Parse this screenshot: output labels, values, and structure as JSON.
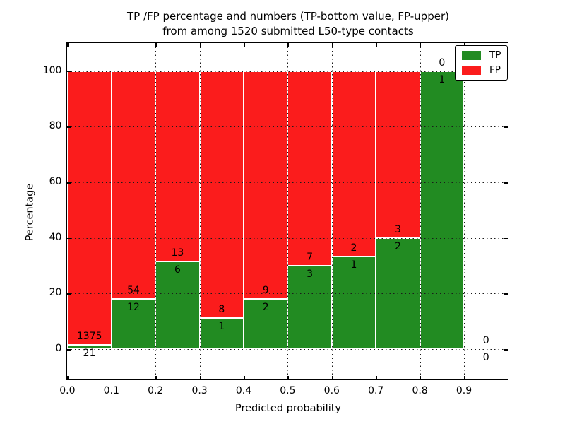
{
  "title": {
    "line1": "TP /FP percentage and numbers (TP-bottom value, FP-upper)",
    "line2": "from among 1520 submitted L50-type contacts"
  },
  "axes": {
    "xlabel": "Predicted probability",
    "ylabel": "Percentage",
    "xlim": [
      0,
      1.0
    ],
    "ylim": [
      -11,
      110
    ],
    "x_ticks": [
      "0.0",
      "0.1",
      "0.2",
      "0.3",
      "0.4",
      "0.5",
      "0.6",
      "0.7",
      "0.8",
      "0.9"
    ],
    "x_tick_values": [
      0,
      0.1,
      0.2,
      0.3,
      0.4,
      0.5,
      0.6,
      0.7,
      0.8,
      0.9
    ],
    "y_ticks": [
      "0",
      "20",
      "40",
      "60",
      "80",
      "100"
    ],
    "y_tick_values": [
      0,
      20,
      40,
      60,
      80,
      100
    ]
  },
  "legend": {
    "items": [
      {
        "label": "TP",
        "color": "#228b22"
      },
      {
        "label": "FP",
        "color": "#fb1c1c"
      }
    ]
  },
  "colors": {
    "tp": "#228b22",
    "fp": "#fb1c1c",
    "grid": "#1a1a1a",
    "text": "#000000",
    "background": "#ffffff"
  },
  "chart_data": {
    "type": "bar",
    "stacked": true,
    "normalized_to": 100,
    "title": "TP /FP percentage and numbers (TP-bottom value, FP-upper) from among 1520 submitted L50-type contacts",
    "xlabel": "Predicted probability",
    "ylabel": "Percentage",
    "xlim": [
      0,
      1.0
    ],
    "ylim": [
      -11,
      110
    ],
    "grid": true,
    "legend_position": "upper right",
    "total_contacts": 1520,
    "categories": [
      "0.0-0.1",
      "0.1-0.2",
      "0.2-0.3",
      "0.3-0.4",
      "0.4-0.5",
      "0.5-0.6",
      "0.6-0.7",
      "0.7-0.8",
      "0.8-0.9",
      "0.9-1.0"
    ],
    "series": [
      {
        "name": "TP",
        "values": [
          21,
          12,
          6,
          1,
          2,
          3,
          1,
          2,
          1,
          0
        ]
      },
      {
        "name": "FP",
        "values": [
          1375,
          54,
          13,
          8,
          9,
          7,
          2,
          3,
          0,
          0
        ]
      }
    ],
    "bins": [
      {
        "x0": 0.0,
        "x1": 0.1,
        "tp": 21,
        "fp": 1375,
        "tp_pct": 1.5
      },
      {
        "x0": 0.1,
        "x1": 0.2,
        "tp": 12,
        "fp": 54,
        "tp_pct": 18.18
      },
      {
        "x0": 0.2,
        "x1": 0.3,
        "tp": 6,
        "fp": 13,
        "tp_pct": 31.58
      },
      {
        "x0": 0.3,
        "x1": 0.4,
        "tp": 1,
        "fp": 8,
        "tp_pct": 11.11
      },
      {
        "x0": 0.4,
        "x1": 0.5,
        "tp": 2,
        "fp": 9,
        "tp_pct": 18.18
      },
      {
        "x0": 0.5,
        "x1": 0.6,
        "tp": 3,
        "fp": 7,
        "tp_pct": 30.0
      },
      {
        "x0": 0.6,
        "x1": 0.7,
        "tp": 1,
        "fp": 2,
        "tp_pct": 33.33
      },
      {
        "x0": 0.7,
        "x1": 0.8,
        "tp": 2,
        "fp": 3,
        "tp_pct": 40.0
      },
      {
        "x0": 0.8,
        "x1": 0.9,
        "tp": 1,
        "fp": 0,
        "tp_pct": 100.0
      },
      {
        "x0": 0.9,
        "x1": 1.0,
        "tp": 0,
        "fp": 0,
        "tp_pct": 0
      }
    ]
  }
}
